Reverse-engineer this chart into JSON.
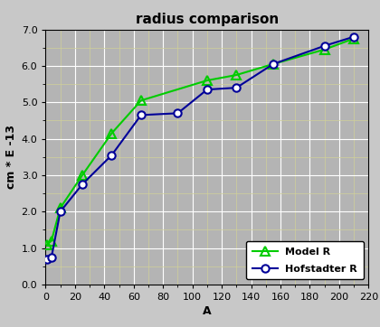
{
  "title": "radius comparison",
  "xlabel": "A",
  "ylabel": "cm * E -13",
  "xlim": [
    0,
    220
  ],
  "ylim": [
    0.0,
    7.0
  ],
  "xticks": [
    0,
    20,
    40,
    60,
    80,
    100,
    120,
    140,
    160,
    180,
    200,
    220
  ],
  "yticks": [
    0.0,
    1.0,
    2.0,
    3.0,
    4.0,
    5.0,
    6.0,
    7.0
  ],
  "model_x": [
    1,
    4,
    10,
    25,
    45,
    65,
    110,
    130,
    155,
    190,
    210
  ],
  "model_y": [
    1.1,
    1.2,
    2.1,
    3.0,
    4.15,
    5.05,
    5.6,
    5.75,
    6.05,
    6.45,
    6.75
  ],
  "hofstadter_x": [
    1,
    4,
    10,
    25,
    45,
    65,
    90,
    110,
    130,
    155,
    190,
    210
  ],
  "hofstadter_y": [
    0.7,
    0.75,
    2.0,
    2.75,
    3.55,
    4.65,
    4.7,
    5.35,
    5.4,
    6.05,
    6.55,
    6.8
  ],
  "model_color": "#00cc00",
  "hofstadter_color": "#000099",
  "background_color": "#c8c8c8",
  "plot_bg_color": "#b4b4b4",
  "grid_color_major": "#ffffff",
  "grid_color_minor": "#d0d098",
  "title_fontsize": 11,
  "label_fontsize": 9,
  "tick_fontsize": 8,
  "legend_fontsize": 8
}
